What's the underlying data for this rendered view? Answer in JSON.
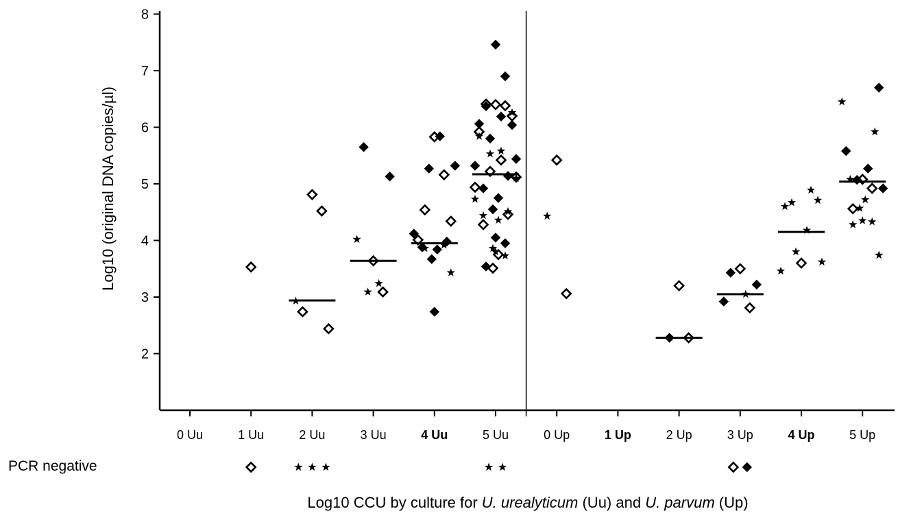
{
  "chart_data": {
    "type": "scatter",
    "title": "",
    "ylabel": "Log10 (original DNA copies/µl)",
    "xlabel_parts": {
      "prefix": "Log10 CCU by culture for ",
      "species1": "U. urealyticum",
      "mid": " (Uu) and ",
      "species2": "U. parvum",
      "suffix": " (Up)"
    },
    "ylim": [
      1,
      8
    ],
    "yticks": [
      2,
      3,
      4,
      5,
      6,
      7,
      8
    ],
    "categories": [
      "0 Uu",
      "1 Uu",
      "2 Uu",
      "3 Uu",
      "4 Uu",
      "5 Uu",
      "0 Up",
      "1 Up",
      "2 Up",
      "3 Up",
      "4 Up",
      "5 Up"
    ],
    "category_bold": [
      false,
      false,
      false,
      false,
      true,
      false,
      false,
      true,
      false,
      false,
      true,
      false
    ],
    "divider_after_category": 5,
    "grid": false,
    "series": [
      {
        "marker": "open-diamond",
        "points": [
          {
            "cat": 1,
            "y": 3.53
          },
          {
            "cat": 2,
            "y": 4.81
          },
          {
            "cat": 2,
            "y": 4.52
          },
          {
            "cat": 2,
            "y": 2.74
          },
          {
            "cat": 2,
            "y": 2.44
          },
          {
            "cat": 3,
            "y": 3.64
          },
          {
            "cat": 3,
            "y": 3.09
          },
          {
            "cat": 4,
            "y": 5.83
          },
          {
            "cat": 4,
            "y": 5.16
          },
          {
            "cat": 4,
            "y": 4.54
          },
          {
            "cat": 4,
            "y": 4.34
          },
          {
            "cat": 4,
            "y": 4.01
          },
          {
            "cat": 5,
            "y": 6.4
          },
          {
            "cat": 5,
            "y": 6.38
          },
          {
            "cat": 5,
            "y": 6.41
          },
          {
            "cat": 5,
            "y": 6.2
          },
          {
            "cat": 5,
            "y": 5.92
          },
          {
            "cat": 5,
            "y": 5.42
          },
          {
            "cat": 5,
            "y": 5.22
          },
          {
            "cat": 5,
            "y": 5.12
          },
          {
            "cat": 5,
            "y": 4.94
          },
          {
            "cat": 5,
            "y": 4.46
          },
          {
            "cat": 5,
            "y": 4.28
          },
          {
            "cat": 5,
            "y": 3.75
          },
          {
            "cat": 5,
            "y": 3.51
          },
          {
            "cat": 6,
            "y": 5.42
          },
          {
            "cat": 6,
            "y": 3.06
          },
          {
            "cat": 8,
            "y": 3.2
          },
          {
            "cat": 8,
            "y": 2.28
          },
          {
            "cat": 9,
            "y": 3.5
          },
          {
            "cat": 9,
            "y": 2.81
          },
          {
            "cat": 10,
            "y": 3.6
          },
          {
            "cat": 11,
            "y": 5.08
          },
          {
            "cat": 11,
            "y": 4.92
          },
          {
            "cat": 11,
            "y": 4.56
          }
        ]
      },
      {
        "marker": "filled-diamond",
        "points": [
          {
            "cat": 3,
            "y": 5.65
          },
          {
            "cat": 3,
            "y": 5.13
          },
          {
            "cat": 4,
            "y": 5.84
          },
          {
            "cat": 4,
            "y": 5.27
          },
          {
            "cat": 4,
            "y": 5.32
          },
          {
            "cat": 4,
            "y": 4.12
          },
          {
            "cat": 4,
            "y": 3.98
          },
          {
            "cat": 4,
            "y": 3.88
          },
          {
            "cat": 4,
            "y": 3.84
          },
          {
            "cat": 4,
            "y": 3.67
          },
          {
            "cat": 4,
            "y": 2.74
          },
          {
            "cat": 5,
            "y": 7.46
          },
          {
            "cat": 5,
            "y": 6.9
          },
          {
            "cat": 5,
            "y": 6.37
          },
          {
            "cat": 5,
            "y": 6.04
          },
          {
            "cat": 5,
            "y": 6.06
          },
          {
            "cat": 5,
            "y": 6.19
          },
          {
            "cat": 5,
            "y": 5.8
          },
          {
            "cat": 5,
            "y": 5.44
          },
          {
            "cat": 5,
            "y": 5.32
          },
          {
            "cat": 5,
            "y": 5.14
          },
          {
            "cat": 5,
            "y": 4.92
          },
          {
            "cat": 5,
            "y": 4.75
          },
          {
            "cat": 5,
            "y": 4.55
          },
          {
            "cat": 5,
            "y": 4.05
          },
          {
            "cat": 5,
            "y": 3.95
          },
          {
            "cat": 5,
            "y": 3.54
          },
          {
            "cat": 8,
            "y": 2.28
          },
          {
            "cat": 9,
            "y": 3.43
          },
          {
            "cat": 9,
            "y": 3.22
          },
          {
            "cat": 9,
            "y": 2.92
          },
          {
            "cat": 11,
            "y": 6.7
          },
          {
            "cat": 11,
            "y": 5.58
          },
          {
            "cat": 11,
            "y": 5.27
          },
          {
            "cat": 11,
            "y": 5.07
          },
          {
            "cat": 11,
            "y": 4.92
          }
        ]
      },
      {
        "marker": "star",
        "points": [
          {
            "cat": 2,
            "y": 2.93
          },
          {
            "cat": 3,
            "y": 4.02
          },
          {
            "cat": 3,
            "y": 3.24
          },
          {
            "cat": 3,
            "y": 3.09
          },
          {
            "cat": 4,
            "y": 3.92
          },
          {
            "cat": 4,
            "y": 3.86
          },
          {
            "cat": 4,
            "y": 3.43
          },
          {
            "cat": 5,
            "y": 6.26
          },
          {
            "cat": 5,
            "y": 5.84
          },
          {
            "cat": 5,
            "y": 5.58
          },
          {
            "cat": 5,
            "y": 5.53
          },
          {
            "cat": 5,
            "y": 5.1
          },
          {
            "cat": 5,
            "y": 4.73
          },
          {
            "cat": 5,
            "y": 4.51
          },
          {
            "cat": 5,
            "y": 4.44
          },
          {
            "cat": 5,
            "y": 4.36
          },
          {
            "cat": 5,
            "y": 3.86
          },
          {
            "cat": 5,
            "y": 3.8
          },
          {
            "cat": 5,
            "y": 3.73
          },
          {
            "cat": 6,
            "y": 4.43
          },
          {
            "cat": 9,
            "y": 3.05
          },
          {
            "cat": 10,
            "y": 4.89
          },
          {
            "cat": 10,
            "y": 4.67
          },
          {
            "cat": 10,
            "y": 4.71
          },
          {
            "cat": 10,
            "y": 4.6
          },
          {
            "cat": 10,
            "y": 4.18
          },
          {
            "cat": 10,
            "y": 3.8
          },
          {
            "cat": 10,
            "y": 3.62
          },
          {
            "cat": 10,
            "y": 3.46
          },
          {
            "cat": 11,
            "y": 6.45
          },
          {
            "cat": 11,
            "y": 5.92
          },
          {
            "cat": 11,
            "y": 5.08
          },
          {
            "cat": 11,
            "y": 4.72
          },
          {
            "cat": 11,
            "y": 4.57
          },
          {
            "cat": 11,
            "y": 4.35
          },
          {
            "cat": 11,
            "y": 4.33
          },
          {
            "cat": 11,
            "y": 4.28
          },
          {
            "cat": 11,
            "y": 3.74
          }
        ]
      }
    ],
    "medians": [
      {
        "cat": 2,
        "y": 2.94
      },
      {
        "cat": 3,
        "y": 3.64
      },
      {
        "cat": 4,
        "y": 3.95
      },
      {
        "cat": 5,
        "y": 5.17
      },
      {
        "cat": 8,
        "y": 2.28
      },
      {
        "cat": 9,
        "y": 3.05
      },
      {
        "cat": 10,
        "y": 4.15
      },
      {
        "cat": 11,
        "y": 5.04
      }
    ],
    "pcr_negative": {
      "label": "PCR negative",
      "groups": [
        {
          "cat": 1,
          "markers": [
            "open-diamond"
          ]
        },
        {
          "cat": 2,
          "markers": [
            "star",
            "star",
            "star"
          ]
        },
        {
          "cat": 5,
          "markers": [
            "star",
            "star"
          ]
        },
        {
          "cat": 9,
          "markers": [
            "open-diamond",
            "filled-diamond"
          ]
        }
      ]
    }
  }
}
